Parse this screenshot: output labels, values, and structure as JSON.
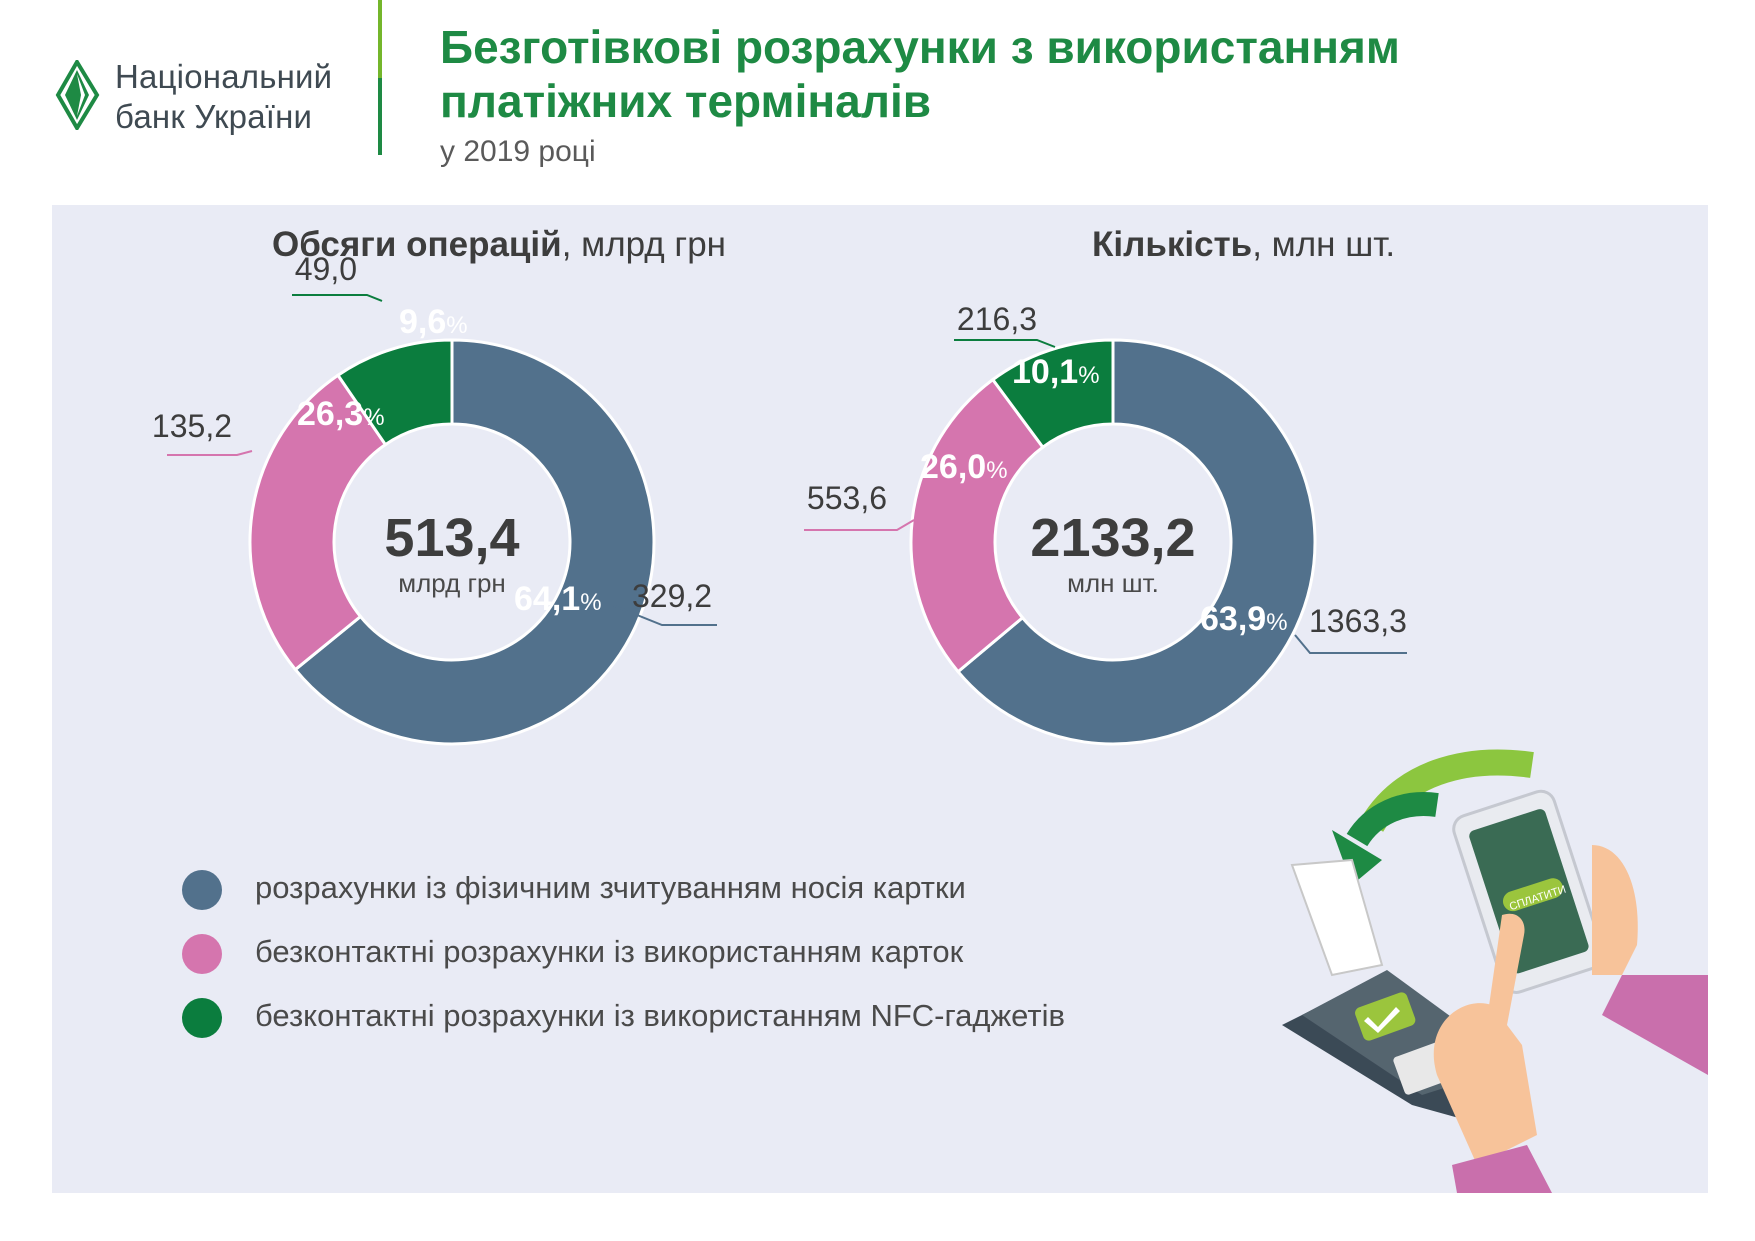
{
  "header": {
    "logo_line1": "Національний",
    "logo_line2": "банк України",
    "title_line1": "Безготівкові розрахунки з використанням",
    "title_line2": "платіжних терміналів",
    "subtitle": "у 2019 році"
  },
  "colors": {
    "physical": "#52718c",
    "contactless_card": "#d575ae",
    "nfc": "#0b7d3e",
    "brand_green": "#1e8a44",
    "light_green": "#74b62b",
    "panel_bg": "#e9ebf5"
  },
  "chart_data": [
    {
      "type": "pie",
      "title_bold": "Обсяги операцій",
      "title_rest": ", млрд грн",
      "center_value": "513,4",
      "center_unit": "млрд грн",
      "series": [
        {
          "name": "розрахунки із фізичним зчитуванням носія картки",
          "value": 329.2,
          "value_label": "329,2",
          "percent": 64.1,
          "percent_label": "64,1"
        },
        {
          "name": "безконтактні розрахунки із використанням карток",
          "value": 135.2,
          "value_label": "135,2",
          "percent": 26.3,
          "percent_label": "26,3"
        },
        {
          "name": "безконтактні розрахунки із використанням NFC-гаджетів",
          "value": 49.0,
          "value_label": "49,0",
          "percent": 9.6,
          "percent_label": "9,6"
        }
      ]
    },
    {
      "type": "pie",
      "title_bold": "Кількість",
      "title_rest": ", млн шт.",
      "center_value": "2133,2",
      "center_unit": "млн шт.",
      "series": [
        {
          "name": "розрахунки із фізичним зчитуванням носія картки",
          "value": 1363.3,
          "value_label": "1363,3",
          "percent": 63.9,
          "percent_label": "63,9"
        },
        {
          "name": "безконтактні розрахунки із використанням карток",
          "value": 553.6,
          "value_label": "553,6",
          "percent": 26.0,
          "percent_label": "26,0"
        },
        {
          "name": "безконтактні розрахунки із використанням NFC-гаджетів",
          "value": 216.3,
          "value_label": "216,3",
          "percent": 10.1,
          "percent_label": "10,1"
        }
      ]
    }
  ],
  "legend": [
    {
      "label": "розрахунки із фізичним зчитуванням носія картки",
      "color": "#52718c"
    },
    {
      "label": "безконтактні розрахунки із використанням карток",
      "color": "#d575ae"
    },
    {
      "label": "безконтактні розрахунки із використанням NFC-гаджетів",
      "color": "#0b7d3e"
    }
  ],
  "illustration": {
    "phone_button": "СПЛАТИТИ"
  }
}
